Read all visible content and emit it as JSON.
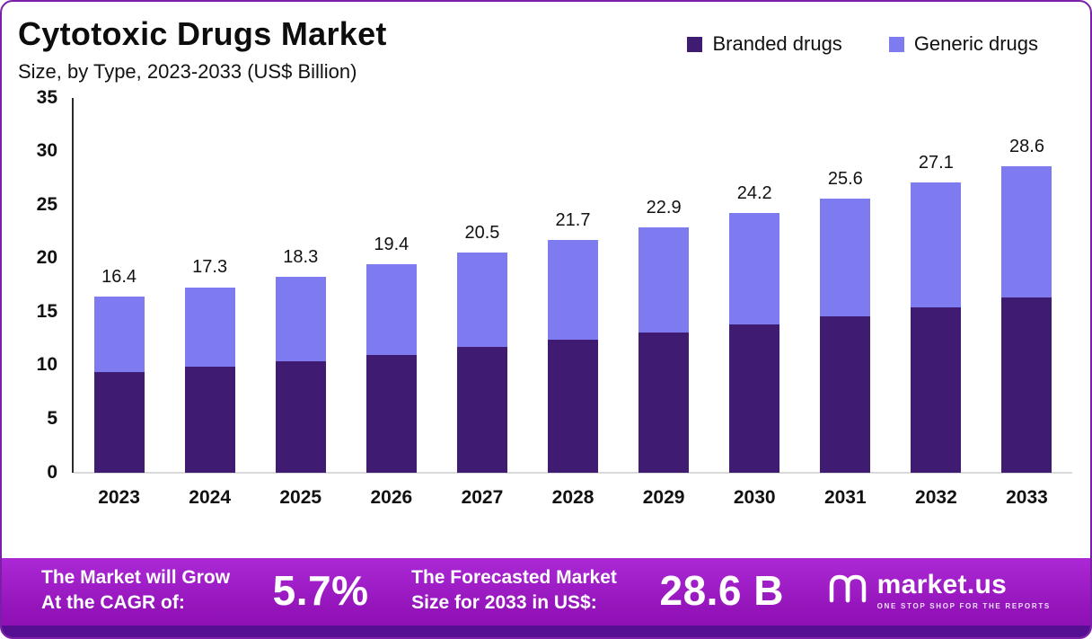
{
  "header": {
    "title": "Cytotoxic Drugs Market",
    "subtitle": "Size, by Type, 2023-2033 (US$ Billion)"
  },
  "legend": {
    "items": [
      {
        "label": "Branded drugs",
        "color": "#3f1c72"
      },
      {
        "label": "Generic drugs",
        "color": "#7e7bf0"
      }
    ]
  },
  "chart_data": {
    "type": "bar",
    "stacked": true,
    "title": "Cytotoxic Drugs Market Size, by Type, 2023-2033 (US$ Billion)",
    "categories": [
      "2023",
      "2024",
      "2025",
      "2026",
      "2027",
      "2028",
      "2029",
      "2030",
      "2031",
      "2032",
      "2033"
    ],
    "series": [
      {
        "name": "Branded drugs",
        "color": "#3f1c72",
        "values": [
          9.4,
          9.9,
          10.4,
          11.0,
          11.7,
          12.4,
          13.1,
          13.8,
          14.6,
          15.4,
          16.3
        ]
      },
      {
        "name": "Generic drugs",
        "color": "#7e7bf0",
        "values": [
          7.0,
          7.4,
          7.9,
          8.4,
          8.8,
          9.3,
          9.8,
          10.4,
          11.0,
          11.7,
          12.3
        ]
      }
    ],
    "totals": [
      16.4,
      17.3,
      18.3,
      19.4,
      20.5,
      21.7,
      22.9,
      24.2,
      25.6,
      27.1,
      28.6
    ],
    "total_labels": [
      "16.4",
      "17.3",
      "18.3",
      "19.4",
      "20.5",
      "21.7",
      "22.9",
      "24.2",
      "25.6",
      "27.1",
      "28.6"
    ],
    "xlabel": "",
    "ylabel": "",
    "ylim": [
      0,
      35
    ],
    "yticks": [
      35,
      30,
      25,
      20,
      15,
      10,
      5,
      0
    ],
    "grid": false,
    "legend_position": "top-right"
  },
  "footer": {
    "cagr_label_line1": "The Market will Grow",
    "cagr_label_line2": "At the CAGR of:",
    "cagr_value": "5.7%",
    "forecast_label_line1": "The Forecasted Market",
    "forecast_label_line2": "Size for 2033 in US$:",
    "forecast_value": "28.6 B",
    "brand_name": "market.us",
    "brand_tagline": "ONE STOP SHOP FOR THE REPORTS"
  },
  "colors": {
    "branded": "#3f1c72",
    "generic": "#7e7bf0",
    "banner_strip": "#560f93",
    "page_border": "#7b1fa8"
  }
}
